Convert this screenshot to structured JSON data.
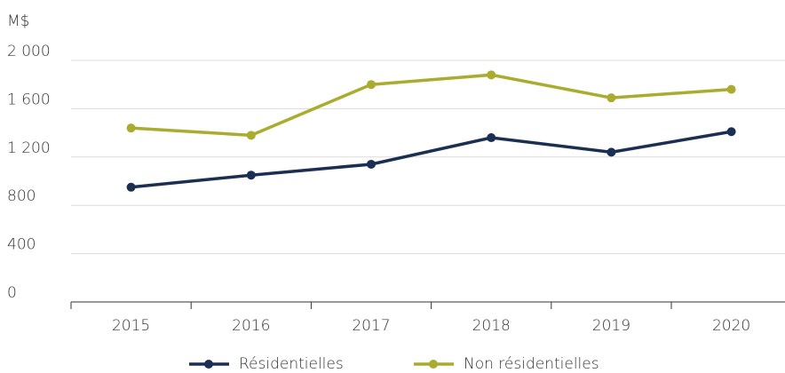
{
  "chart_data": {
    "type": "line",
    "y_label": "M$",
    "categories": [
      "2015",
      "2016",
      "2017",
      "2018",
      "2019",
      "2020"
    ],
    "series": [
      {
        "name": "Résidentielles",
        "color": "#1b2f52",
        "values": [
          950,
          1050,
          1140,
          1360,
          1240,
          1410
        ]
      },
      {
        "name": "Non résidentielles",
        "color": "#a9ac2e",
        "values": [
          1440,
          1380,
          1800,
          1880,
          1690,
          1760
        ]
      }
    ],
    "ylim": [
      0,
      2000
    ],
    "yticks": [
      0,
      400,
      800,
      {
        "value": 1200,
        "label": "1 200"
      },
      {
        "value": 1600,
        "label": "1 600"
      },
      {
        "value": 2000,
        "label": "2 000"
      }
    ],
    "grid": true,
    "legend": "bottom"
  }
}
